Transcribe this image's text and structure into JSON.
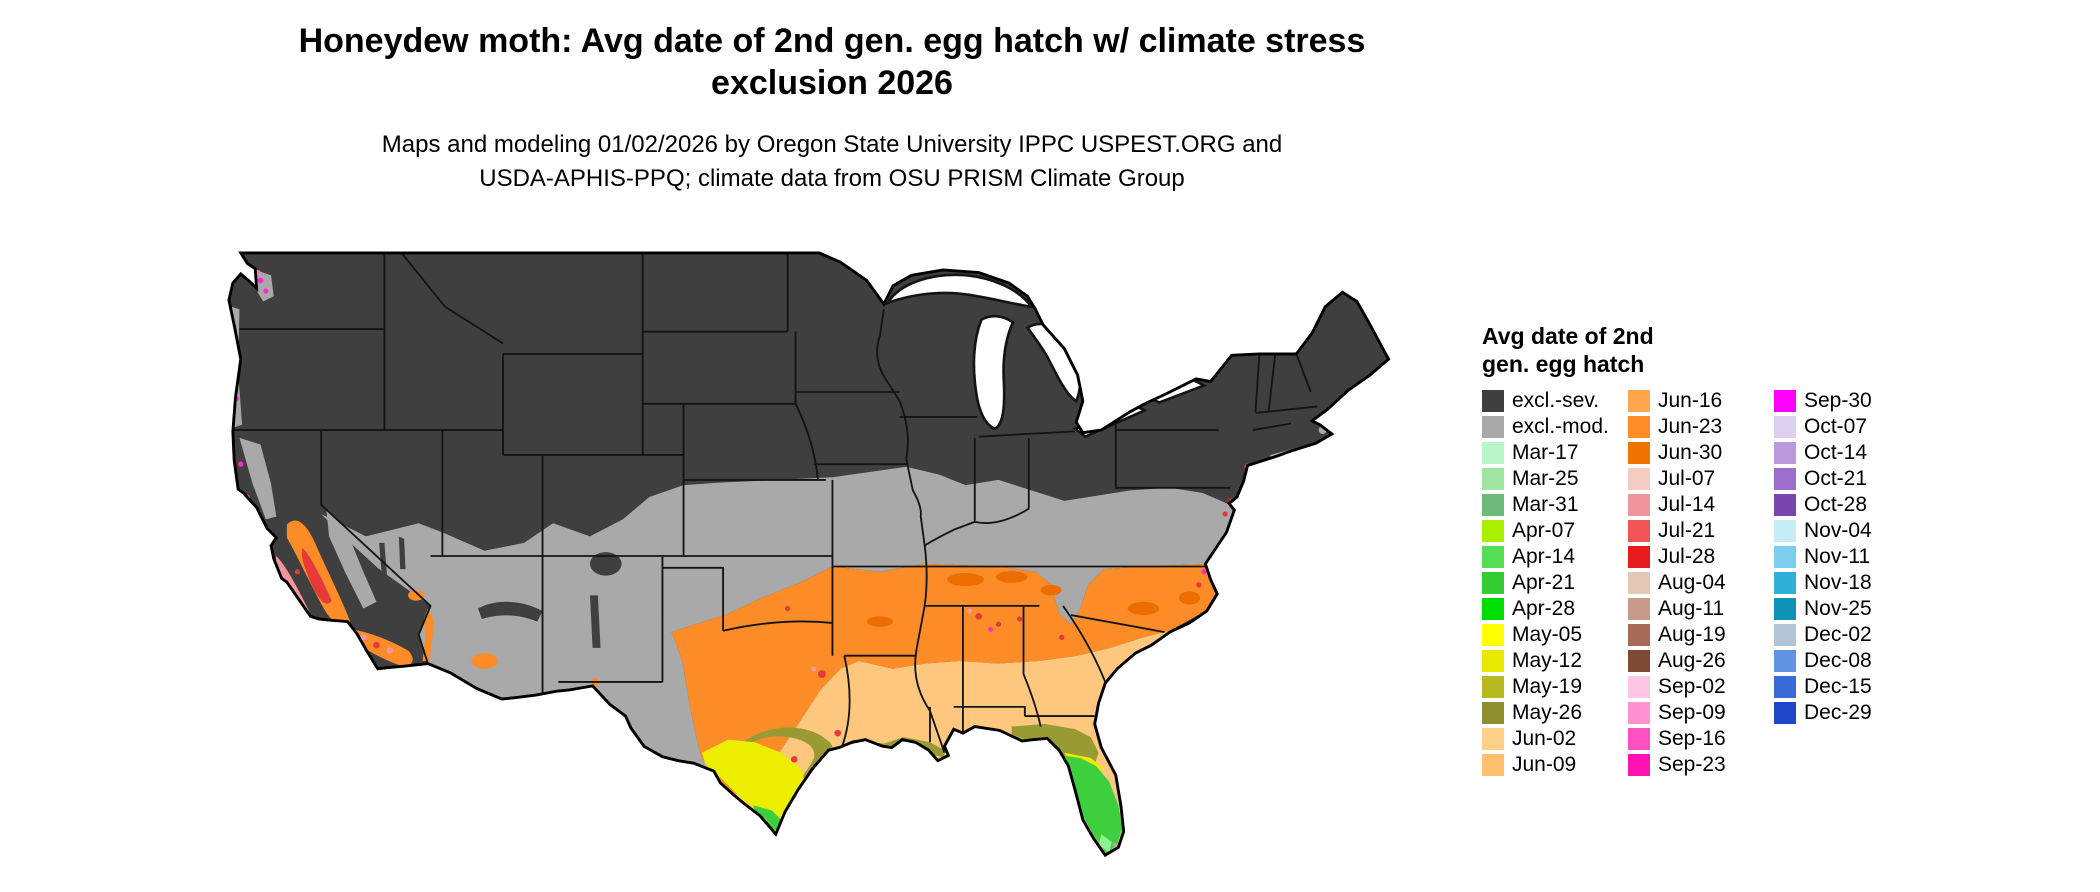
{
  "header": {
    "title_line1": "Honeydew moth: Avg date of 2nd gen. egg hatch w/ climate stress",
    "title_line2": "exclusion 2026",
    "subtitle_line1": "Maps and modeling 01/02/2026 by Oregon State University IPPC USPEST.ORG and",
    "subtitle_line2": "USDA-APHIS-PPQ; climate data from OSU PRISM Climate Group"
  },
  "legend": {
    "title_line1": "Avg date of 2nd",
    "title_line2": "gen. egg hatch",
    "columns": [
      [
        {
          "label": "excl.-sev.",
          "color": "#3f3f3f"
        },
        {
          "label": "excl.-mod.",
          "color": "#a9a9a9"
        },
        {
          "label": "Mar-17",
          "color": "#b8f5c8"
        },
        {
          "label": "Mar-25",
          "color": "#9fe6a0"
        },
        {
          "label": "Mar-31",
          "color": "#6fb97a"
        },
        {
          "label": "Apr-07",
          "color": "#a8f000"
        },
        {
          "label": "Apr-14",
          "color": "#55dd55"
        },
        {
          "label": "Apr-21",
          "color": "#33cc33"
        },
        {
          "label": "Apr-28",
          "color": "#00dd00"
        },
        {
          "label": "May-05",
          "color": "#ffff00"
        },
        {
          "label": "May-12",
          "color": "#e8e800"
        },
        {
          "label": "May-19",
          "color": "#b8b820"
        },
        {
          "label": "May-26",
          "color": "#8f8f2f"
        },
        {
          "label": "Jun-02",
          "color": "#ffd08a"
        },
        {
          "label": "Jun-09",
          "color": "#ffc070"
        }
      ],
      [
        {
          "label": "Jun-16",
          "color": "#ffa64f"
        },
        {
          "label": "Jun-23",
          "color": "#ff8c26"
        },
        {
          "label": "Jun-30",
          "color": "#f07300"
        },
        {
          "label": "Jul-07",
          "color": "#f5cdc3"
        },
        {
          "label": "Jul-14",
          "color": "#f0949e"
        },
        {
          "label": "Jul-21",
          "color": "#f25555"
        },
        {
          "label": "Jul-28",
          "color": "#e81c1c"
        },
        {
          "label": "Aug-04",
          "color": "#e5c9b8"
        },
        {
          "label": "Aug-11",
          "color": "#c79a8b"
        },
        {
          "label": "Aug-19",
          "color": "#a66a58"
        },
        {
          "label": "Aug-26",
          "color": "#7e4a35"
        },
        {
          "label": "Sep-02",
          "color": "#ffc6e4"
        },
        {
          "label": "Sep-09",
          "color": "#ff92d0"
        },
        {
          "label": "Sep-16",
          "color": "#ff4fc0"
        },
        {
          "label": "Sep-23",
          "color": "#ff12b2"
        }
      ],
      [
        {
          "label": "Sep-30",
          "color": "#ff00ff"
        },
        {
          "label": "Oct-07",
          "color": "#ddd0ee"
        },
        {
          "label": "Oct-14",
          "color": "#bb99dd"
        },
        {
          "label": "Oct-21",
          "color": "#9c6ece"
        },
        {
          "label": "Oct-28",
          "color": "#7a45ad"
        },
        {
          "label": "Nov-04",
          "color": "#c6ecf8"
        },
        {
          "label": "Nov-11",
          "color": "#7cd0ee"
        },
        {
          "label": "Nov-18",
          "color": "#30b0d8"
        },
        {
          "label": "Nov-25",
          "color": "#0e92b8"
        },
        {
          "label": "Dec-02",
          "color": "#b3c4d6"
        },
        {
          "label": "Dec-08",
          "color": "#6293e3"
        },
        {
          "label": "Dec-15",
          "color": "#3a6ad8"
        },
        {
          "label": "Dec-29",
          "color": "#1f45c8"
        }
      ]
    ]
  },
  "map_colors": {
    "excl_sev": "#3f3f3f",
    "excl_mod": "#a9a9a9",
    "jun_band": "#fb8c28",
    "jun_dark": "#ec6e00",
    "jun_early": "#fdc87e",
    "may_olive": "#9a9a33",
    "may_yellow": "#eded00",
    "apr_green": "#3ecf3e",
    "mar_green_light": "#8ef08e",
    "jul_red": "#e63a3a",
    "jul_pink": "#f0969f",
    "sep_hotpink": "#ff7ad2",
    "sep_magenta": "#ff29c8",
    "aug_maroon": "#b03030",
    "water": "#ffffff",
    "border": "#000000",
    "state_line": "#141414"
  }
}
